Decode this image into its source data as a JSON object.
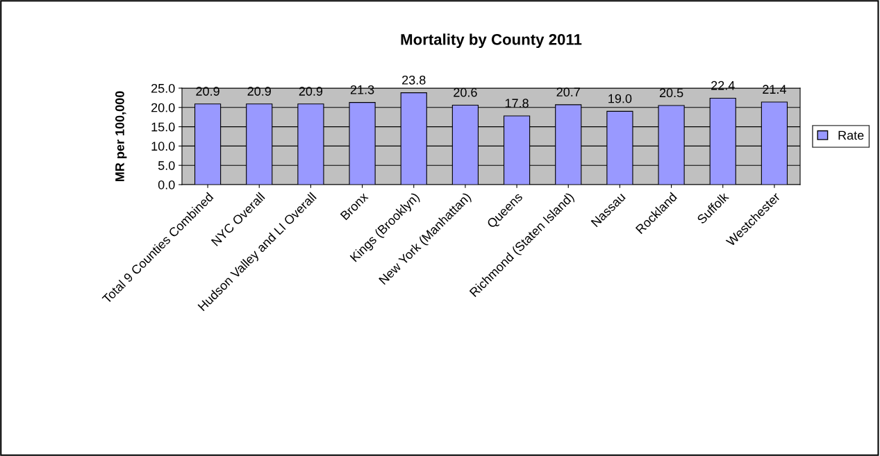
{
  "chart_data": {
    "type": "bar",
    "title": "Mortality by County 2011",
    "ylabel": "MR per 100,000",
    "categories": [
      "Total 9 Counties Combined",
      "NYC Overall",
      "Hudson Valley and LI Overall",
      "Bronx",
      "Kings (Brooklyn)",
      "New York (Manhattan)",
      "Queens",
      "Richmond (Staten Island)",
      "Nassau",
      "Rockland",
      "Suffolk",
      "Westchester"
    ],
    "series": [
      {
        "name": "Rate",
        "color": "#9999ff",
        "values": [
          20.9,
          20.9,
          20.9,
          21.3,
          23.8,
          20.6,
          17.8,
          20.7,
          19.0,
          20.5,
          22.4,
          21.4
        ],
        "value_labels": [
          "20.9",
          "20.9",
          "20.9",
          "21.3",
          "23.8",
          "20.6",
          "17.8",
          "20.7",
          "19.0",
          "20.5",
          "22.4",
          "21.4"
        ]
      }
    ],
    "ylim": [
      0,
      25
    ],
    "yticks": [
      {
        "value": 0,
        "label": "0.0"
      },
      {
        "value": 5,
        "label": "5.0"
      },
      {
        "value": 10,
        "label": "10.0"
      },
      {
        "value": 15,
        "label": "15.0"
      },
      {
        "value": 20,
        "label": "20.0"
      },
      {
        "value": 25,
        "label": "25.0"
      }
    ],
    "grid": "y",
    "legend": "right"
  }
}
